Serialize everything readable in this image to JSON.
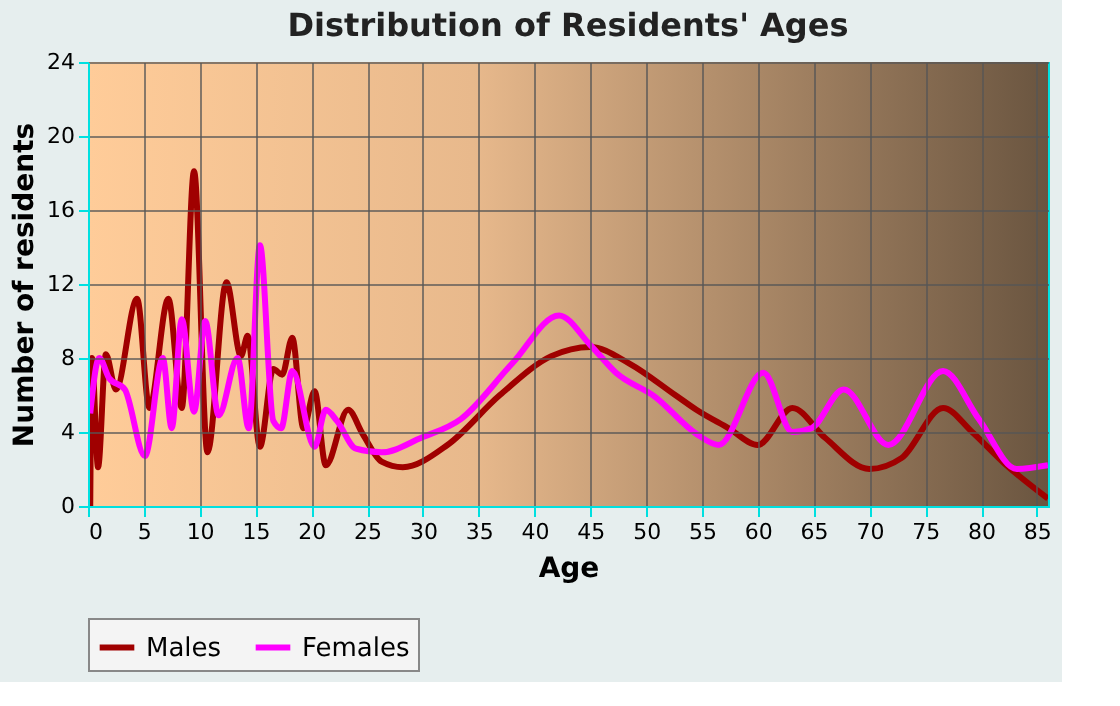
{
  "chart_data": {
    "type": "line",
    "title": "Distribution of Residents' Ages",
    "xlabel": "Age",
    "ylabel": "Number of residents",
    "xlim": [
      0,
      86
    ],
    "xticks": [
      0,
      5,
      10,
      15,
      20,
      25,
      30,
      35,
      40,
      45,
      50,
      55,
      60,
      65,
      70,
      75,
      80,
      85
    ],
    "ylim": [
      0,
      24
    ],
    "yticks": [
      0,
      4,
      8,
      12,
      16,
      20,
      24
    ],
    "grid": true,
    "legend": "bottom",
    "marker": "none",
    "line_style": "solid",
    "series": [
      {
        "name": "Males",
        "color": "#a00000",
        "x": [
          0.2,
          0.35,
          0.9,
          1.6,
          2.5,
          4.4,
          5.5,
          7.2,
          8.4,
          9.5,
          10.7,
          12.4,
          13.7,
          14.3,
          15.4,
          16.6,
          17.4,
          18.3,
          19.3,
          20.3,
          21.3,
          23.3,
          24.6,
          26.3,
          28.2,
          32.2,
          36.9,
          41.5,
          45,
          48.5,
          52.6,
          54.5,
          57.4,
          60,
          63.1,
          66,
          70,
          72.9,
          76.6,
          79.2,
          82.1,
          86
        ],
        "values": [
          0,
          8,
          2.1,
          8.2,
          6.3,
          11.2,
          5.3,
          11.2,
          5.3,
          18.1,
          2.9,
          12.1,
          8.1,
          9.2,
          3.2,
          7.4,
          7.1,
          9.1,
          4.2,
          6.2,
          2.2,
          5.2,
          3.9,
          2.4,
          2.1,
          3.3,
          6.0,
          8.1,
          8.6,
          7.7,
          6.0,
          5.2,
          4.2,
          3.3,
          5.3,
          3.7,
          2.0,
          2.6,
          5.3,
          4.0,
          2.3,
          0.4
        ]
      },
      {
        "name": "Females",
        "color": "#ff00ff",
        "x": [
          0.2,
          1.0,
          1.9,
          3.3,
          5.1,
          6.7,
          7.5,
          8.4,
          9.5,
          10.5,
          11.7,
          13.4,
          14.4,
          15.4,
          16.6,
          17.3,
          18.3,
          20.3,
          21.3,
          22.3,
          24.0,
          26.3,
          29.9,
          33.4,
          38,
          42.2,
          45,
          47.3,
          50.8,
          54.5,
          56.5,
          60.5,
          63.1,
          64.8,
          67.7,
          71.7,
          76.6,
          79.8,
          83.2,
          86
        ],
        "values": [
          5,
          8,
          6.9,
          6.3,
          2.7,
          8,
          4.2,
          10.1,
          5.1,
          10,
          4.9,
          8,
          4.2,
          14.1,
          4.6,
          4.2,
          7.3,
          3.2,
          5.2,
          4.6,
          3.1,
          2.9,
          3.7,
          4.7,
          7.7,
          10.3,
          8.7,
          7.2,
          5.9,
          3.9,
          3.3,
          7.2,
          4.0,
          4.2,
          6.3,
          3.3,
          7.3,
          4.7,
          2.0,
          2.2
        ]
      }
    ]
  }
}
